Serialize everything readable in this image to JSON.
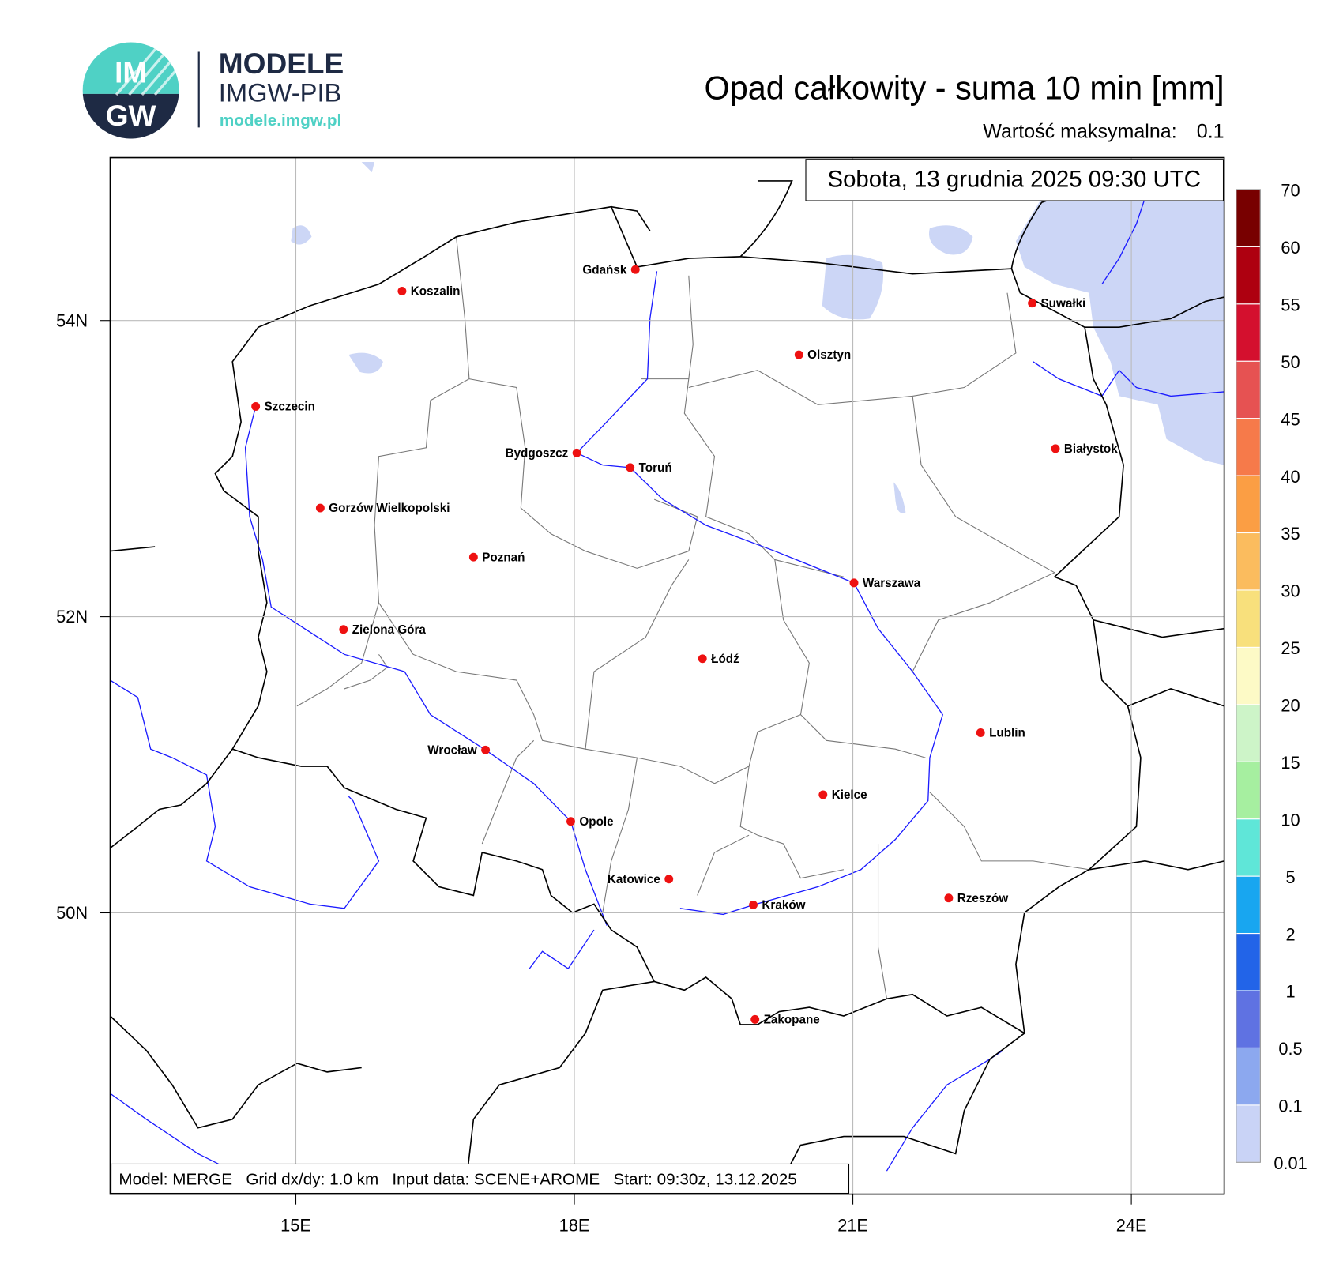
{
  "header": {
    "logo_circle_top": "IM",
    "logo_circle_bottom": "GW",
    "brand": "MODELE",
    "brand_sub": "IMGW-PIB",
    "url": "modele.imgw.pl"
  },
  "title": "Opad całkowity - suma 10 min [mm]",
  "max_value_label": "Wartość maksymalna:",
  "max_value": 0.1,
  "date": "Sobota, 13 grudnia 2025 09:30 UTC",
  "footer": "Model: MERGE   Grid dx/dy: 1.0 km   Input data: SCENE+AROME   Start: 09:30z, 13.12.2025",
  "map": {
    "xlim": [
      13,
      25
    ],
    "ylim": [
      48.1,
      55.1
    ],
    "xticks": [
      {
        "value": 15,
        "label": "15E"
      },
      {
        "value": 18,
        "label": "18E"
      },
      {
        "value": 21,
        "label": "21E"
      },
      {
        "value": 24,
        "label": "24E"
      }
    ],
    "yticks": [
      {
        "value": 50,
        "label": "50N"
      },
      {
        "value": 52,
        "label": "52N"
      },
      {
        "value": 54,
        "label": "54N"
      }
    ],
    "grid": true,
    "cities": [
      "Gdańsk",
      "Koszalin",
      "Szczecin",
      "Suwałki",
      "Olsztyn",
      "Białystok",
      "Bydgoszcz",
      "Toruń",
      "Gorzów Wielkopolski",
      "Poznań",
      "Warszawa",
      "Zielona Góra",
      "Łódź",
      "Lublin",
      "Wrocław",
      "Kielce",
      "Opole",
      "Katowice",
      "Rzeszów",
      "Kraków",
      "Zakopane"
    ]
  },
  "legend": {
    "levels": [
      0.01,
      0.1,
      0.5,
      1,
      2,
      5,
      10,
      15,
      20,
      25,
      30,
      35,
      40,
      45,
      50,
      55,
      60,
      70
    ],
    "colors": [
      "#c9d3f6",
      "#8ca8ef",
      "#5f72e2",
      "#2264e8",
      "#18a6f0",
      "#5fe6d8",
      "#a6efa0",
      "#cdf4c8",
      "#fdfac6",
      "#f8e07c",
      "#fbbc5e",
      "#fb9e44",
      "#f67a4a",
      "#e65252",
      "#d4102e",
      "#ae0010",
      "#780000"
    ]
  }
}
